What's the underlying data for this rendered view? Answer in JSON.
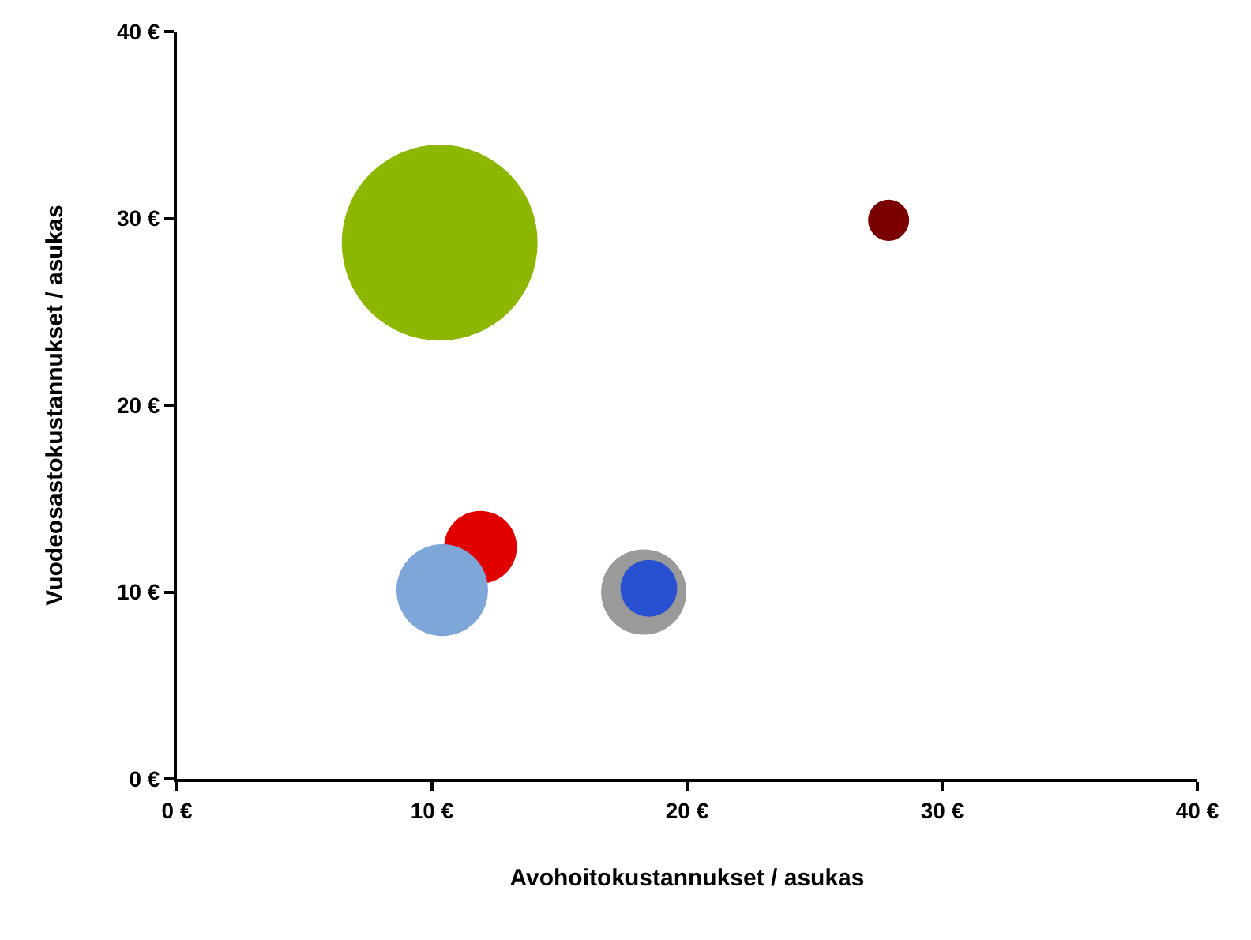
{
  "chart_data": {
    "type": "bubble",
    "xlabel": "Avohoitokustannukset / asukas",
    "ylabel": "Vuodeosastokustannukset / asukas",
    "x": [
      10.3,
      27.9,
      11.9,
      10.4,
      18.3,
      18.5
    ],
    "values": [
      28.7,
      29.9,
      12.4,
      10.1,
      10.0,
      10.2
    ],
    "sizes": [
      1,
      0.044,
      0.138,
      0.219,
      0.19,
      0.084
    ],
    "colors": [
      "#8db600",
      "#7a0000",
      "#e00000",
      "#7ea6d8",
      "#9a9a9a",
      "#2850d0"
    ],
    "xlim": [
      0,
      40
    ],
    "ylim": [
      0,
      40
    ],
    "xticks": [
      {
        "value": 0,
        "label": "0 €"
      },
      {
        "value": 10,
        "label": "10 €"
      },
      {
        "value": 20,
        "label": "20 €"
      },
      {
        "value": 30,
        "label": "30 €"
      },
      {
        "value": 40,
        "label": "40 €"
      }
    ],
    "yticks": [
      {
        "value": 0,
        "label": "0 €"
      },
      {
        "value": 10,
        "label": "10 €"
      },
      {
        "value": 20,
        "label": "20 €"
      },
      {
        "value": 30,
        "label": "30 €"
      },
      {
        "value": 40,
        "label": "40 €"
      }
    ],
    "grid": false
  }
}
